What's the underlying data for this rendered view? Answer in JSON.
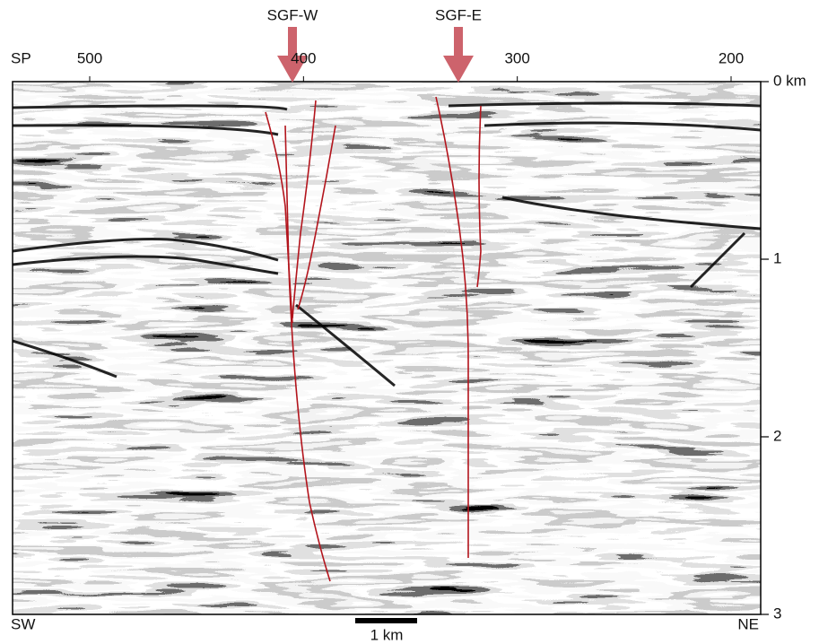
{
  "faults": [
    {
      "label": "SGF-W"
    },
    {
      "label": "SGF-E"
    }
  ],
  "shotpoint_axis": {
    "label": "SP",
    "ticks": [
      500,
      400,
      300,
      200
    ]
  },
  "depth_axis": {
    "ticks": [
      {
        "value": 0,
        "label": "0 km"
      },
      1,
      2,
      3
    ]
  },
  "orientation": {
    "left": "SW",
    "right": "NE"
  },
  "scale_bar": {
    "label": "1 km"
  }
}
